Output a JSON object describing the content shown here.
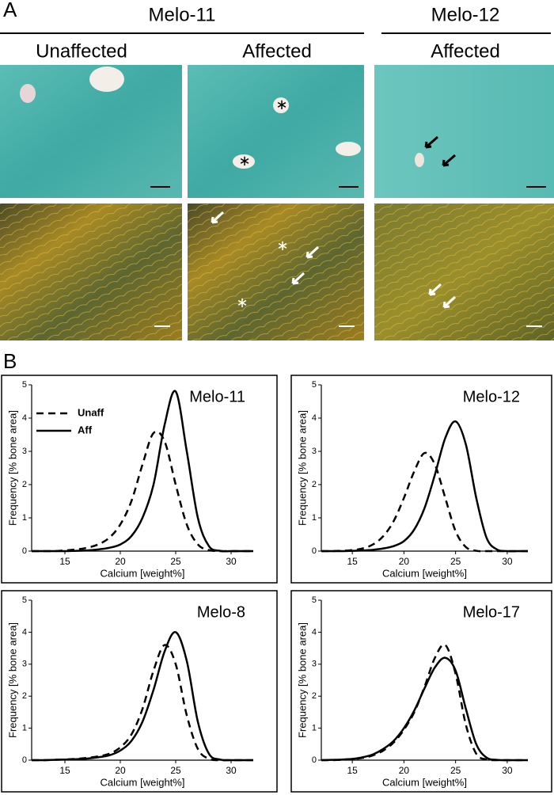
{
  "panel_a": {
    "label": "A",
    "groups": [
      {
        "name": "Melo-11",
        "columns": [
          "Unaffected",
          "Affected"
        ]
      },
      {
        "name": "Melo-12",
        "columns": [
          "Affected"
        ]
      }
    ]
  },
  "panel_b": {
    "label": "B"
  },
  "chart_data": [
    {
      "type": "line",
      "title": "Melo-11",
      "x_label": "Calcium [weight%]",
      "y_label": "Frequency [% bone area]",
      "x": [
        12,
        13,
        14,
        15,
        16,
        17,
        18,
        19,
        20,
        21,
        22,
        23,
        24,
        25,
        26,
        27,
        28,
        29,
        30,
        31,
        32
      ],
      "xlim": [
        12,
        32
      ],
      "ylim": [
        0,
        5
      ],
      "xticks": [
        15,
        20,
        25,
        30
      ],
      "yticks": [
        0,
        1,
        2,
        3,
        4,
        5
      ],
      "legend": "upper left",
      "series": [
        {
          "name": "Unaff",
          "color": "#000000",
          "dash": true,
          "values": [
            0,
            0,
            0,
            0.02,
            0.05,
            0.1,
            0.2,
            0.4,
            0.8,
            1.5,
            2.6,
            3.55,
            3.3,
            2.0,
            0.8,
            0.2,
            0.03,
            0,
            0,
            0,
            0
          ]
        },
        {
          "name": "Aff",
          "color": "#000000",
          "dash": false,
          "values": [
            0,
            0,
            0,
            0,
            0.01,
            0.02,
            0.05,
            0.1,
            0.2,
            0.45,
            1.0,
            2.0,
            3.8,
            4.8,
            3.0,
            1.0,
            0.15,
            0.01,
            0,
            0,
            0
          ]
        }
      ]
    },
    {
      "type": "line",
      "title": "Melo-12",
      "x_label": "Calcium [weight%]",
      "y_label": "Frequency [% bone area]",
      "x": [
        12,
        13,
        14,
        15,
        16,
        17,
        18,
        19,
        20,
        21,
        22,
        23,
        24,
        25,
        26,
        27,
        28,
        29,
        30,
        31,
        32
      ],
      "xlim": [
        12,
        32
      ],
      "ylim": [
        0,
        5
      ],
      "xticks": [
        15,
        20,
        25,
        30
      ],
      "yticks": [
        0,
        1,
        2,
        3,
        4,
        5
      ],
      "series": [
        {
          "color": "#000000",
          "dash": true,
          "values": [
            0,
            0,
            0.01,
            0.03,
            0.08,
            0.2,
            0.45,
            0.9,
            1.6,
            2.4,
            2.95,
            2.6,
            1.6,
            0.6,
            0.12,
            0.01,
            0,
            0,
            0,
            0,
            0
          ]
        },
        {
          "color": "#000000",
          "dash": false,
          "values": [
            0,
            0,
            0,
            0.01,
            0.02,
            0.04,
            0.08,
            0.15,
            0.3,
            0.65,
            1.3,
            2.3,
            3.4,
            3.9,
            3.2,
            1.6,
            0.4,
            0.05,
            0,
            0,
            0
          ]
        }
      ]
    },
    {
      "type": "line",
      "title": "Melo-8",
      "x_label": "Calcium [weight%]",
      "y_label": "Frequency [% bone area]",
      "x": [
        12,
        13,
        14,
        15,
        16,
        17,
        18,
        19,
        20,
        21,
        22,
        23,
        24,
        25,
        26,
        27,
        28,
        29,
        30,
        31,
        32
      ],
      "xlim": [
        12,
        32
      ],
      "ylim": [
        0,
        5
      ],
      "xticks": [
        15,
        20,
        25,
        30
      ],
      "yticks": [
        0,
        1,
        2,
        3,
        4,
        5
      ],
      "series": [
        {
          "color": "#000000",
          "dash": true,
          "values": [
            0,
            0,
            0.01,
            0.02,
            0.04,
            0.07,
            0.12,
            0.2,
            0.4,
            0.8,
            1.6,
            2.8,
            3.6,
            3.0,
            1.4,
            0.35,
            0.04,
            0,
            0,
            0,
            0
          ]
        },
        {
          "color": "#000000",
          "dash": false,
          "values": [
            0,
            0,
            0.01,
            0.02,
            0.03,
            0.05,
            0.09,
            0.15,
            0.3,
            0.6,
            1.2,
            2.2,
            3.4,
            4.0,
            3.1,
            1.2,
            0.2,
            0.02,
            0,
            0,
            0
          ]
        }
      ]
    },
    {
      "type": "line",
      "title": "Melo-17",
      "x_label": "Calcium [weight%]",
      "y_label": "Frequency [% bone area]",
      "x": [
        12,
        13,
        14,
        15,
        16,
        17,
        18,
        19,
        20,
        21,
        22,
        23,
        24,
        25,
        26,
        27,
        28,
        29,
        30,
        31,
        32
      ],
      "xlim": [
        12,
        32
      ],
      "ylim": [
        0,
        5
      ],
      "xticks": [
        15,
        20,
        25,
        30
      ],
      "yticks": [
        0,
        1,
        2,
        3,
        4,
        5
      ],
      "series": [
        {
          "color": "#000000",
          "dash": true,
          "values": [
            0,
            0,
            0.01,
            0.03,
            0.07,
            0.15,
            0.3,
            0.55,
            0.95,
            1.5,
            2.3,
            3.2,
            3.6,
            2.7,
            1.1,
            0.2,
            0.02,
            0,
            0,
            0,
            0
          ]
        },
        {
          "color": "#000000",
          "dash": false,
          "values": [
            0,
            0.01,
            0.02,
            0.04,
            0.09,
            0.18,
            0.35,
            0.6,
            1.0,
            1.55,
            2.25,
            2.9,
            3.2,
            2.8,
            1.6,
            0.5,
            0.08,
            0.01,
            0,
            0,
            0
          ]
        }
      ]
    }
  ]
}
